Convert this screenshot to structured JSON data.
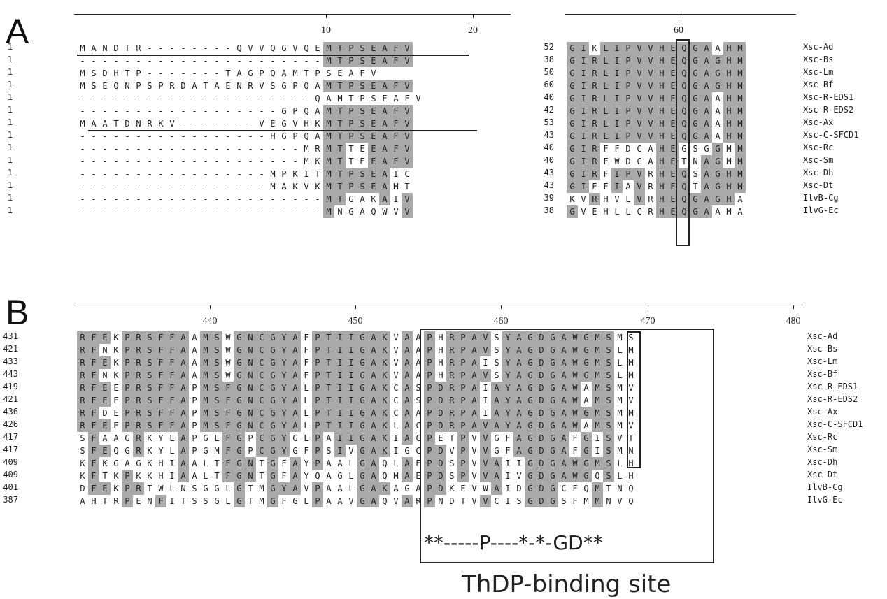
{
  "panel_a": {
    "label": "A",
    "left_ticks": [
      "10",
      "20"
    ],
    "right_ticks": [
      "60"
    ],
    "names": [
      "Xsc-Ad",
      "Xsc-Bs",
      "Xsc-Lm",
      "Xsc-Bf",
      "Xsc-R-EDS1",
      "Xsc-R-EDS2",
      "Xsc-Ax",
      "Xsc-C-SFCD1",
      "Xsc-Rc",
      "Xsc-Sm",
      "Xsc-Dh",
      "Xsc-Dt",
      "IlvB-Cg",
      "IlvG-Ec"
    ],
    "left_starts": [
      "1",
      "1",
      "1",
      "1",
      "1",
      "1",
      "1",
      "1",
      "1",
      "1",
      "1",
      "1",
      "1",
      "1"
    ],
    "left_seqs": [
      "MANDTR--------QVVQGVQEMTPSEAFV",
      "----------------------MTPSEAFV",
      "MSDHTP-------TAGPQAMTPSEAFV",
      "MSEQNPSPRDATAENRVSGPQAMTPSEAFV",
      "---------------------QAMTPSEAFV",
      "------------------GPQAMTPSEAFV",
      "MAATDNRKV-------VEGVHKMTPSEAFV",
      "-----------------HGPQAMTPSEAFV",
      "--------------------MRMTTEEAFV",
      "--------------------MKMTTEEAFV",
      "-----------------MPKITMTPSEAIC",
      "-----------------MAKVKMTPSEAMT",
      "----------------------MTGAKAIV",
      "----------------------MNGAQWVV"
    ],
    "right_starts": [
      "52",
      "38",
      "50",
      "60",
      "40",
      "42",
      "53",
      "43",
      "40",
      "40",
      "43",
      "43",
      "39",
      "38"
    ],
    "right_seqs": [
      "GIKLIPVVHEQGAAHM",
      "GIRLIPVVHEQGAGHM",
      "GIRLIPVVHEQGAGHM",
      "GIRLIPVVHEQGAGHM",
      "GIRLIPVVHEQGAAHM",
      "GIRLIPVVHEQGAAHM",
      "GIRLIPVVHEQGAAHM",
      "GIRLIPVVHEQGAAHM",
      "GIRFFDCAHEGSGGMM",
      "GIRFWDCAHETNAGMM",
      "GIRFIPVRHEQSAGHM",
      "GIEFIAVRHEQTAGHM",
      "KVRHVLVRHEQGAGHA",
      "GVEHLLCRHEQGAAMA"
    ]
  },
  "panel_b": {
    "label": "B",
    "ticks": [
      "440",
      "450",
      "460",
      "470",
      "480"
    ],
    "names": [
      "Xsc-Ad",
      "Xsc-Bs",
      "Xsc-Lm",
      "Xsc-Bf",
      "Xsc-R-EDS1",
      "Xsc-R-EDS2",
      "Xsc-Ax",
      "Xsc-C-SFCD1",
      "Xsc-Rc",
      "Xsc-Sm",
      "Xsc-Dh",
      "Xsc-Dt",
      "IlvB-Cg",
      "IlvG-Ec"
    ],
    "starts": [
      "431",
      "421",
      "433",
      "443",
      "419",
      "421",
      "436",
      "426",
      "417",
      "417",
      "409",
      "409",
      "401",
      "387"
    ],
    "seqs": [
      "RFEKPRSFFAAMSWGNCGYAFPTIIGAKVAAPHRPAVSYAGDGAWGMSMS",
      "RFNKPRSFFAAMSWGNCGYAFPTIIGAKVAAPHRPAVSYAGDGAWGMSLM",
      "RFEKPRSFFAAMSWGNCGYAFPTIIGAKVAAPHRPAISYAGDGAWGMSLM",
      "RFNKPRSFFAAMSWGNCGYAFPTIIGAKVAAPHRPAVSYAGDGAWGMSLM",
      "RFEEPRSFFAPMSFGNCGYALPTIIGAKCASPDRPAIAYAGDGAWAMSMV",
      "RFEEPRSFFAPMSFGNCGYALPTIIGAKCASPDRPAIAYAGDGAWAMSMV",
      "RFDEPRSFFAPMSFGNCGYALPTIIGAKCAAPDRPAIAYAGDGAWGMSMM",
      "RFEEPRSFFAPMSFGNCGYALPTIIGAKLACPDRPAVAYAGDGAWAMSMV",
      "SFAAGRKYLAPGLFGPCGYGLPAIIGAKIACPETPVVGFAGDGAFGISVT",
      "SFEQGRKYLAPGMFGPCGYGFPSIVGAKIGCPDVPVVGFAGDGAFGISMN",
      "KFKGAGKHIAALTFGNTGFAYPAALGAQLAEPDSPVVAIIGDGAWGMSLH",
      "KFTKPKKHIAALTFGNTGFAYQAGLGAQMAEPDSPVVAIVGDGAWGQSLH",
      "DFEKPRTWLNSGGLGTMGYAVPAALGAKAGAPDKEVWAIDGDGCFQMTNQ",
      "AHTRPENFITSSGLGTMGFGLPAAVGAQVARPNDTVVCISGDGSFMMNVQ"
    ],
    "consensus": "**-----P----*-*-GD**",
    "site_label": "ThDP-binding site"
  }
}
